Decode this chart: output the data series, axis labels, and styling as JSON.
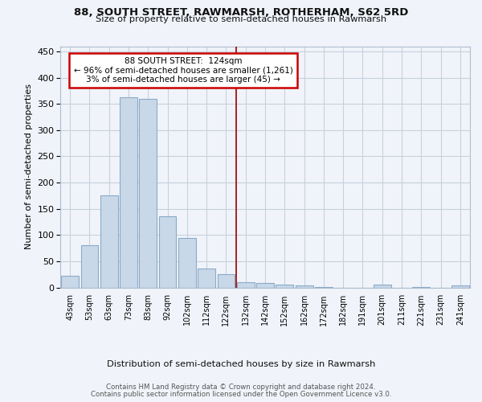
{
  "title1": "88, SOUTH STREET, RAWMARSH, ROTHERHAM, S62 5RD",
  "title2": "Size of property relative to semi-detached houses in Rawmarsh",
  "xlabel": "Distribution of semi-detached houses by size in Rawmarsh",
  "ylabel": "Number of semi-detached properties",
  "footer1": "Contains HM Land Registry data © Crown copyright and database right 2024.",
  "footer2": "Contains public sector information licensed under the Open Government Licence v3.0.",
  "annotation_title": "88 SOUTH STREET:  124sqm",
  "annotation_line1": "← 96% of semi-detached houses are smaller (1,261)",
  "annotation_line2": "3% of semi-detached houses are larger (45) →",
  "bar_categories": [
    "43sqm",
    "53sqm",
    "63sqm",
    "73sqm",
    "83sqm",
    "92sqm",
    "102sqm",
    "112sqm",
    "122sqm",
    "132sqm",
    "142sqm",
    "152sqm",
    "162sqm",
    "172sqm",
    "182sqm",
    "191sqm",
    "201sqm",
    "211sqm",
    "221sqm",
    "231sqm",
    "241sqm"
  ],
  "bar_values": [
    22,
    80,
    175,
    363,
    360,
    136,
    95,
    36,
    26,
    10,
    8,
    5,
    4,
    1,
    0,
    0,
    5,
    0,
    1,
    0,
    4
  ],
  "bar_color": "#c8d8e8",
  "bar_edge_color": "#8aaac8",
  "vline_color": "#990000",
  "annotation_box_color": "#cc0000",
  "background_color": "#f0f4fa",
  "grid_color": "#c8d0dc",
  "ylim": [
    0,
    460
  ],
  "yticks": [
    0,
    50,
    100,
    150,
    200,
    250,
    300,
    350,
    400,
    450
  ]
}
